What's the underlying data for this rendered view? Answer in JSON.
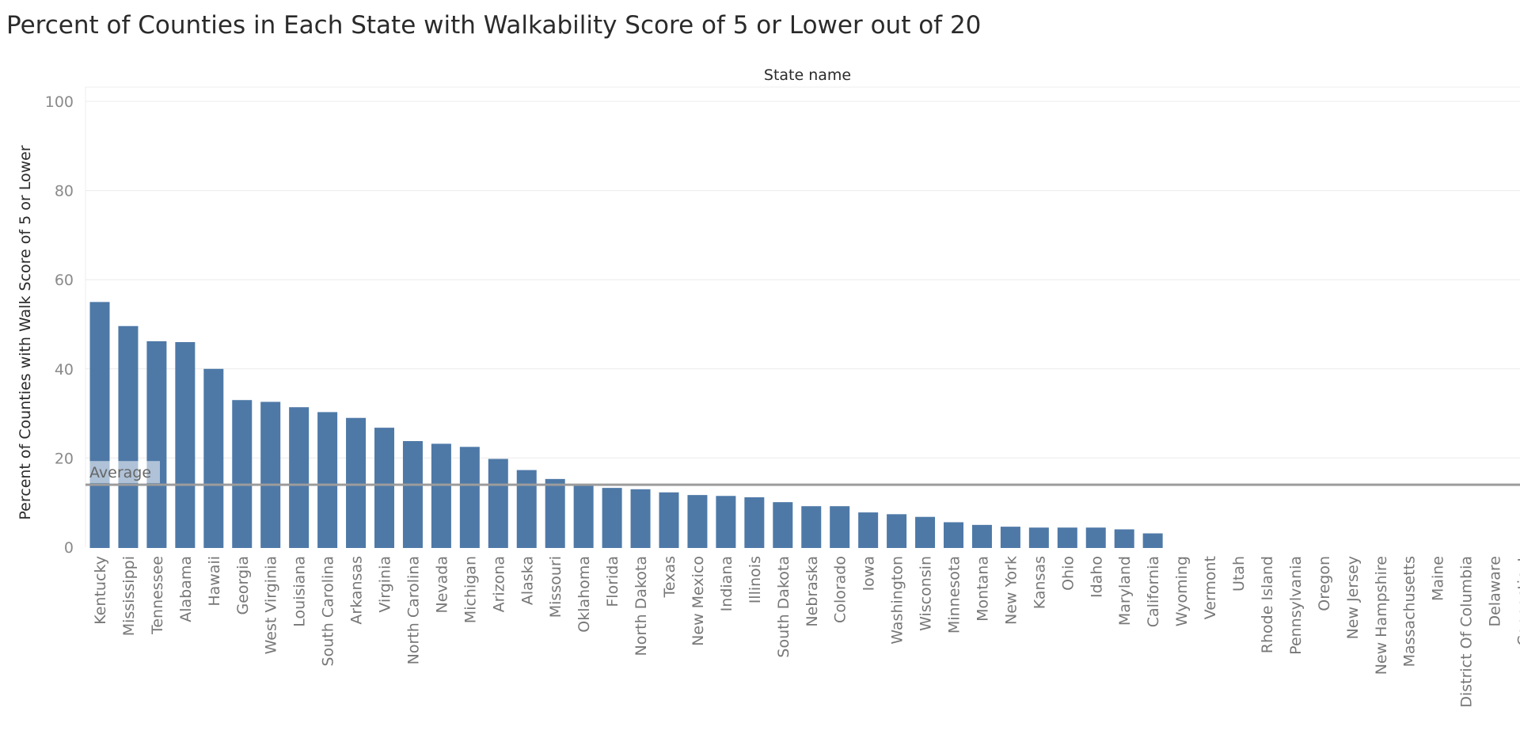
{
  "title": "Percent of Counties in Each State with Walkability Score of 5 or Lower out of 20",
  "chart_data": {
    "type": "bar",
    "title": "Percent of Counties in Each State with Walkability Score of 5 or Lower out of 20",
    "xlabel": "State name",
    "ylabel": "Percent of Counties with Walk Score of 5 or Lower",
    "ylim": [
      0,
      100
    ],
    "yticks": [
      0,
      20,
      40,
      60,
      80,
      100
    ],
    "grid": true,
    "bar_color": "#4e79a7",
    "reference_line": {
      "label": "Average",
      "value": 14
    },
    "categories": [
      "Kentucky",
      "Mississippi",
      "Tennessee",
      "Alabama",
      "Hawaii",
      "Georgia",
      "West Virginia",
      "Louisiana",
      "South Carolina",
      "Arkansas",
      "Virginia",
      "North Carolina",
      "Nevada",
      "Michigan",
      "Arizona",
      "Alaska",
      "Missouri",
      "Oklahoma",
      "Florida",
      "North Dakota",
      "Texas",
      "New Mexico",
      "Indiana",
      "Illinois",
      "South Dakota",
      "Nebraska",
      "Colorado",
      "Iowa",
      "Washington",
      "Wisconsin",
      "Minnesota",
      "Montana",
      "New York",
      "Kansas",
      "Ohio",
      "Idaho",
      "Maryland",
      "California",
      "Wyoming",
      "Vermont",
      "Utah",
      "Rhode Island",
      "Pennsylvania",
      "Oregon",
      "New Jersey",
      "New Hampshire",
      "Massachusetts",
      "Maine",
      "District Of Columbia",
      "Delaware",
      "Connecticut"
    ],
    "values": [
      55.0,
      49.6,
      46.2,
      46.0,
      40.0,
      33.0,
      32.6,
      31.4,
      30.3,
      29.0,
      26.8,
      23.8,
      23.2,
      22.5,
      19.8,
      17.3,
      15.3,
      14.0,
      13.3,
      13.0,
      12.3,
      11.7,
      11.5,
      11.2,
      10.1,
      9.2,
      9.2,
      7.8,
      7.4,
      6.8,
      5.6,
      5.0,
      4.6,
      4.4,
      4.4,
      4.4,
      4.0,
      3.1,
      0,
      0,
      0,
      0,
      0,
      0,
      0,
      0,
      0,
      0,
      0,
      0,
      0
    ]
  }
}
